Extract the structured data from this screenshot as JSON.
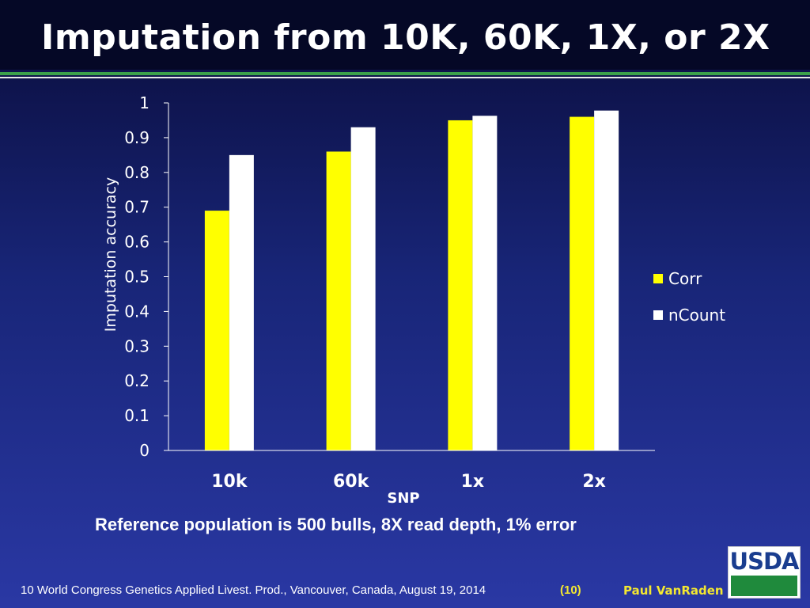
{
  "slide": {
    "title": "Imputation from 10K, 60K, 1X, or 2X",
    "caption": "Reference population is 500 bulls, 8X read depth, 1% error",
    "footer_text": "10 World Congress Genetics Applied Livest. Prod., Vancouver, Canada, August 19, 2014",
    "footer_page": "(10)",
    "footer_author": "Paul VanRaden",
    "logo_text": "USDA"
  },
  "colors": {
    "corr": "#ffff00",
    "ncount": "#ffffff",
    "axis": "#ffffff",
    "accent_footer": "#f4e830"
  },
  "chart_data": {
    "type": "bar",
    "categories": [
      "10k",
      "60k",
      "1x",
      "2x"
    ],
    "series": [
      {
        "name": "Corr",
        "values": [
          0.69,
          0.86,
          0.95,
          0.96
        ]
      },
      {
        "name": "nCount",
        "values": [
          0.85,
          0.93,
          0.963,
          0.978
        ]
      }
    ],
    "title": "",
    "xlabel": "SNP",
    "ylabel": "Imputation accuracy",
    "ylim": [
      0,
      1
    ],
    "yticks": [
      0,
      0.1,
      0.2,
      0.3,
      0.4,
      0.5,
      0.6,
      0.7,
      0.8,
      0.9,
      1
    ],
    "ytick_labels": [
      "0",
      "0.1",
      "0.2",
      "0.3",
      "0.4",
      "0.5",
      "0.6",
      "0.7",
      "0.8",
      "0.9",
      "1"
    ],
    "grid": false,
    "legend_position": "right"
  }
}
